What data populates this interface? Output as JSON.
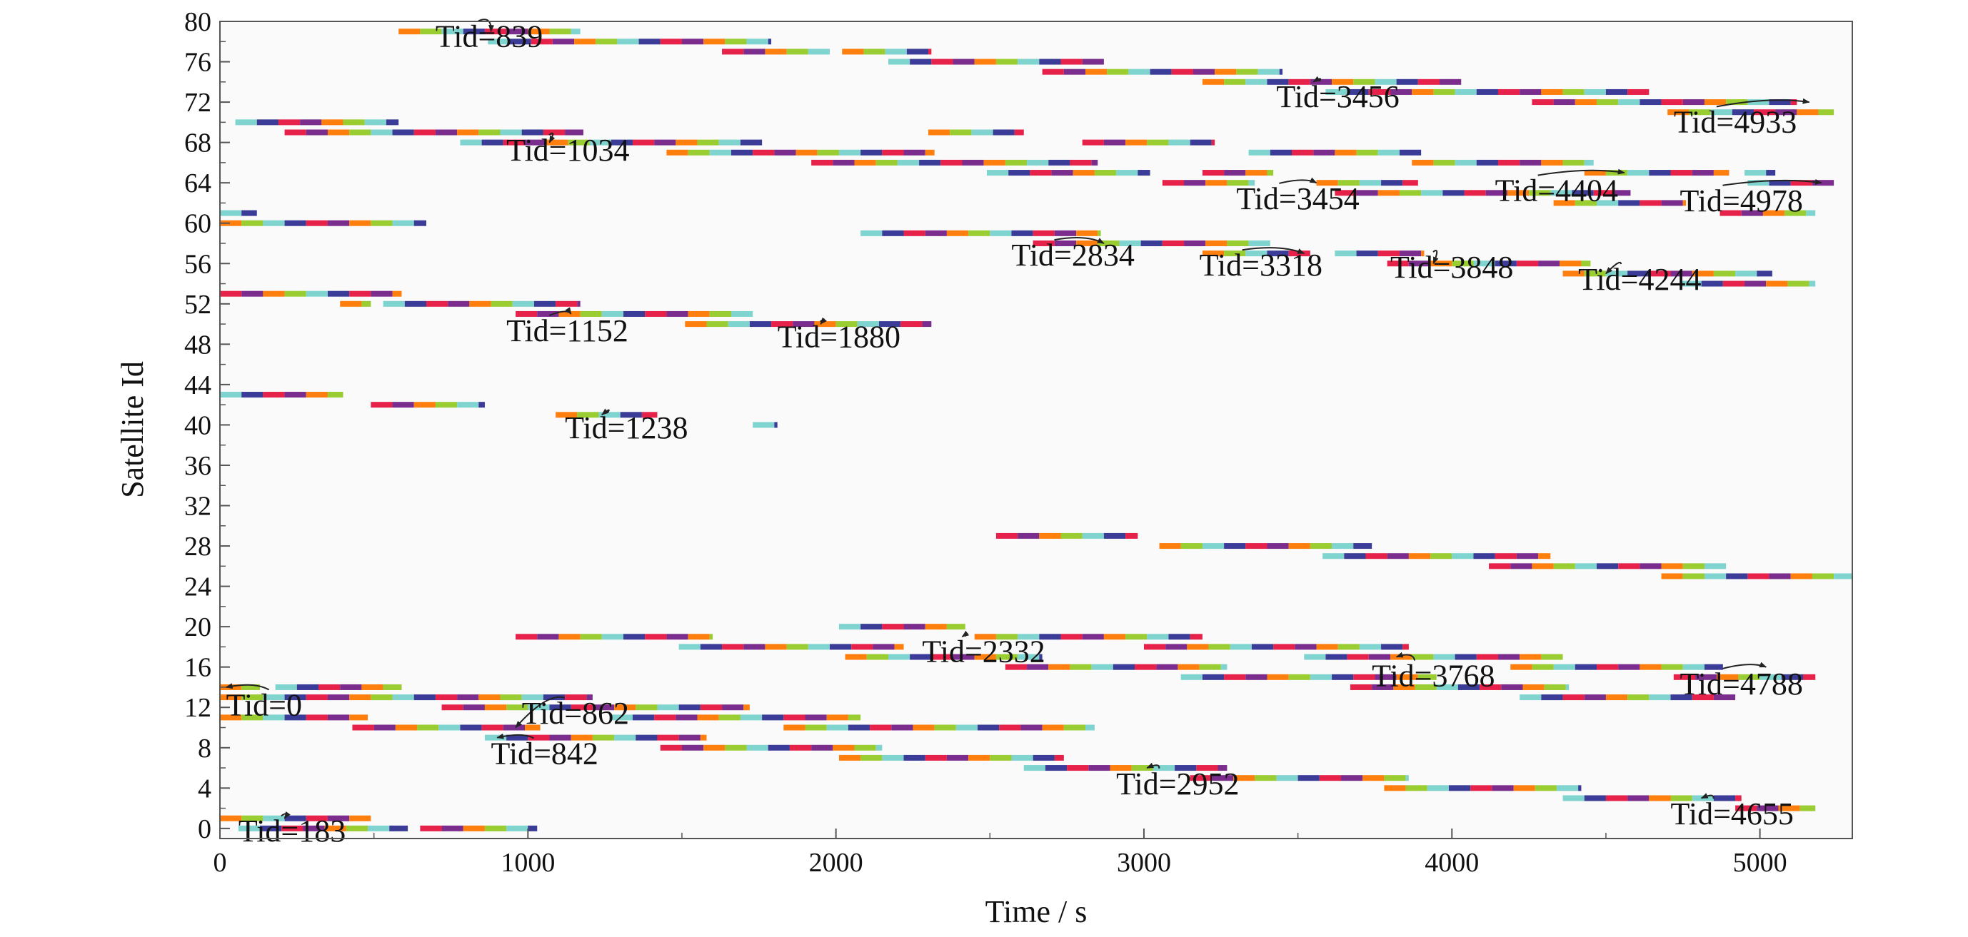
{
  "chart_data": {
    "type": "gantt-timeline",
    "xlabel": "Time / s",
    "ylabel": "Satellite Id",
    "xlim": [
      0,
      5300
    ],
    "ylim": [
      -1,
      80
    ],
    "x_ticks": [
      0,
      1000,
      2000,
      3000,
      4000,
      5000
    ],
    "x_tick_labels": [
      "0",
      "1000",
      "2000",
      "3000",
      "4000",
      "5000"
    ],
    "y_ticks": [
      0,
      4,
      8,
      12,
      16,
      20,
      24,
      28,
      32,
      36,
      40,
      44,
      48,
      52,
      56,
      60,
      64,
      68,
      72,
      76,
      80
    ],
    "y_tick_labels": [
      "0",
      "4",
      "8",
      "12",
      "16",
      "20",
      "24",
      "28",
      "32",
      "36",
      "40",
      "44",
      "48",
      "52",
      "56",
      "60",
      "64",
      "68",
      "72",
      "76",
      "80"
    ],
    "grid": false,
    "segment_colors": [
      "#FF7F0E",
      "#9ACD32",
      "#7FD4D0",
      "#3B3B98",
      "#E6224A",
      "#7B2D8E"
    ],
    "bars": [
      {
        "sat": 79,
        "start": 580,
        "end": 1170
      },
      {
        "sat": 78,
        "start": 870,
        "end": 1790
      },
      {
        "sat": 77,
        "start": 1630,
        "end": 1980
      },
      {
        "sat": 77,
        "start": 2020,
        "end": 2310
      },
      {
        "sat": 76,
        "start": 2170,
        "end": 2870
      },
      {
        "sat": 75,
        "start": 2670,
        "end": 3450
      },
      {
        "sat": 74,
        "start": 3190,
        "end": 4030
      },
      {
        "sat": 73,
        "start": 3590,
        "end": 4640
      },
      {
        "sat": 72,
        "start": 4260,
        "end": 5120
      },
      {
        "sat": 71,
        "start": 4700,
        "end": 5240
      },
      {
        "sat": 70,
        "start": 50,
        "end": 580
      },
      {
        "sat": 69,
        "start": 210,
        "end": 1180
      },
      {
        "sat": 69,
        "start": 2300,
        "end": 2610
      },
      {
        "sat": 68,
        "start": 780,
        "end": 1760
      },
      {
        "sat": 68,
        "start": 2800,
        "end": 3230
      },
      {
        "sat": 67,
        "start": 1450,
        "end": 2320
      },
      {
        "sat": 67,
        "start": 3340,
        "end": 3900
      },
      {
        "sat": 66,
        "start": 1920,
        "end": 2850
      },
      {
        "sat": 66,
        "start": 3870,
        "end": 4460
      },
      {
        "sat": 65,
        "start": 2490,
        "end": 3020
      },
      {
        "sat": 65,
        "start": 3190,
        "end": 3420
      },
      {
        "sat": 65,
        "start": 4430,
        "end": 4900
      },
      {
        "sat": 65,
        "start": 4950,
        "end": 5050
      },
      {
        "sat": 64,
        "start": 3060,
        "end": 3360
      },
      {
        "sat": 64,
        "start": 3560,
        "end": 3890
      },
      {
        "sat": 64,
        "start": 4960,
        "end": 5240
      },
      {
        "sat": 63,
        "start": 3620,
        "end": 4580
      },
      {
        "sat": 62,
        "start": 4330,
        "end": 4760
      },
      {
        "sat": 61,
        "start": 0,
        "end": 120
      },
      {
        "sat": 61,
        "start": 4870,
        "end": 5180
      },
      {
        "sat": 60,
        "start": 0,
        "end": 670
      },
      {
        "sat": 59,
        "start": 2080,
        "end": 2860
      },
      {
        "sat": 58,
        "start": 2640,
        "end": 3410
      },
      {
        "sat": 57,
        "start": 3190,
        "end": 3540
      },
      {
        "sat": 57,
        "start": 3620,
        "end": 3910
      },
      {
        "sat": 56,
        "start": 3790,
        "end": 4450
      },
      {
        "sat": 55,
        "start": 4360,
        "end": 5040
      },
      {
        "sat": 54,
        "start": 4740,
        "end": 5180
      },
      {
        "sat": 53,
        "start": 0,
        "end": 590
      },
      {
        "sat": 52,
        "start": 390,
        "end": 490
      },
      {
        "sat": 52,
        "start": 530,
        "end": 1170
      },
      {
        "sat": 51,
        "start": 960,
        "end": 1730
      },
      {
        "sat": 50,
        "start": 1510,
        "end": 2310
      },
      {
        "sat": 43,
        "start": 0,
        "end": 400
      },
      {
        "sat": 42,
        "start": 490,
        "end": 860
      },
      {
        "sat": 41,
        "start": 1090,
        "end": 1420
      },
      {
        "sat": 40,
        "start": 1730,
        "end": 1810
      },
      {
        "sat": 29,
        "start": 2520,
        "end": 2980
      },
      {
        "sat": 28,
        "start": 3050,
        "end": 3740
      },
      {
        "sat": 27,
        "start": 3580,
        "end": 4320
      },
      {
        "sat": 26,
        "start": 4120,
        "end": 4890
      },
      {
        "sat": 25,
        "start": 4680,
        "end": 5300
      },
      {
        "sat": 20,
        "start": 2010,
        "end": 2420
      },
      {
        "sat": 19,
        "start": 960,
        "end": 1600
      },
      {
        "sat": 19,
        "start": 2450,
        "end": 3190
      },
      {
        "sat": 18,
        "start": 1490,
        "end": 2220
      },
      {
        "sat": 18,
        "start": 3000,
        "end": 3860
      },
      {
        "sat": 17,
        "start": 2030,
        "end": 2670
      },
      {
        "sat": 17,
        "start": 3520,
        "end": 4360
      },
      {
        "sat": 16,
        "start": 2550,
        "end": 3270
      },
      {
        "sat": 16,
        "start": 4190,
        "end": 4880
      },
      {
        "sat": 15,
        "start": 3120,
        "end": 3950
      },
      {
        "sat": 15,
        "start": 4720,
        "end": 5180
      },
      {
        "sat": 14,
        "start": 0,
        "end": 130
      },
      {
        "sat": 14,
        "start": 180,
        "end": 590
      },
      {
        "sat": 14,
        "start": 3670,
        "end": 4380
      },
      {
        "sat": 13,
        "start": 0,
        "end": 1210
      },
      {
        "sat": 13,
        "start": 4220,
        "end": 4920
      },
      {
        "sat": 12,
        "start": 720,
        "end": 1720
      },
      {
        "sat": 11,
        "start": 0,
        "end": 480
      },
      {
        "sat": 11,
        "start": 1270,
        "end": 2080
      },
      {
        "sat": 10,
        "start": 430,
        "end": 1040
      },
      {
        "sat": 10,
        "start": 1830,
        "end": 2840
      },
      {
        "sat": 9,
        "start": 860,
        "end": 1580
      },
      {
        "sat": 8,
        "start": 1430,
        "end": 2150
      },
      {
        "sat": 7,
        "start": 2010,
        "end": 2740
      },
      {
        "sat": 6,
        "start": 2610,
        "end": 3270
      },
      {
        "sat": 5,
        "start": 3150,
        "end": 3860
      },
      {
        "sat": 4,
        "start": 3780,
        "end": 4420
      },
      {
        "sat": 3,
        "start": 4360,
        "end": 4940
      },
      {
        "sat": 2,
        "start": 4920,
        "end": 5180
      },
      {
        "sat": 1,
        "start": 0,
        "end": 490
      },
      {
        "sat": 0,
        "start": 60,
        "end": 610
      },
      {
        "sat": 0,
        "start": 650,
        "end": 1030
      }
    ],
    "annotations": [
      {
        "label": "Tid=839",
        "text_x": 700,
        "text_y": 77.5,
        "arrow_to_x": 880,
        "arrow_to_y": 79
      },
      {
        "label": "Tid=3456",
        "text_x": 3430,
        "text_y": 71.5,
        "arrow_to_x": 3550,
        "arrow_to_y": 74
      },
      {
        "label": "Tid=4933",
        "text_x": 4720,
        "text_y": 69.0,
        "arrow_to_x": 5160,
        "arrow_to_y": 72
      },
      {
        "label": "Tid=1034",
        "text_x": 930,
        "text_y": 66.2,
        "arrow_to_x": 1070,
        "arrow_to_y": 68
      },
      {
        "label": "Tid=3454",
        "text_x": 3300,
        "text_y": 61.4,
        "arrow_to_x": 3560,
        "arrow_to_y": 64
      },
      {
        "label": "Tid=4404",
        "text_x": 4140,
        "text_y": 62.2,
        "arrow_to_x": 4560,
        "arrow_to_y": 65
      },
      {
        "label": "Tid=4978",
        "text_x": 4740,
        "text_y": 61.2,
        "arrow_to_x": 5200,
        "arrow_to_y": 64
      },
      {
        "label": "Tid=2834",
        "text_x": 2570,
        "text_y": 55.8,
        "arrow_to_x": 2870,
        "arrow_to_y": 58
      },
      {
        "label": "Tid=3318",
        "text_x": 3180,
        "text_y": 54.8,
        "arrow_to_x": 3520,
        "arrow_to_y": 57
      },
      {
        "label": "Tid=3848",
        "text_x": 3800,
        "text_y": 54.6,
        "arrow_to_x": 3940,
        "arrow_to_y": 56
      },
      {
        "label": "Tid=4244",
        "text_x": 4410,
        "text_y": 53.4,
        "arrow_to_x": 4500,
        "arrow_to_y": 55
      },
      {
        "label": "Tid=1152",
        "text_x": 930,
        "text_y": 48.3,
        "arrow_to_x": 1140,
        "arrow_to_y": 51
      },
      {
        "label": "Tid=1880",
        "text_x": 1810,
        "text_y": 47.7,
        "arrow_to_x": 1950,
        "arrow_to_y": 50
      },
      {
        "label": "Tid=1238",
        "text_x": 1120,
        "text_y": 38.7,
        "arrow_to_x": 1240,
        "arrow_to_y": 41
      },
      {
        "label": "Tid=2332",
        "text_x": 2280,
        "text_y": 16.5,
        "arrow_to_x": 2410,
        "arrow_to_y": 19
      },
      {
        "label": "Tid=3768",
        "text_x": 3740,
        "text_y": 14.1,
        "arrow_to_x": 3820,
        "arrow_to_y": 17
      },
      {
        "label": "Tid=4788",
        "text_x": 4740,
        "text_y": 13.3,
        "arrow_to_x": 5020,
        "arrow_to_y": 16
      },
      {
        "label": "Tid=0",
        "text_x": 20,
        "text_y": 11.2,
        "arrow_to_x": 20,
        "arrow_to_y": 14
      },
      {
        "label": "Tid=862",
        "text_x": 980,
        "text_y": 10.4,
        "arrow_to_x": 960,
        "arrow_to_y": 10
      },
      {
        "label": "Tid=842",
        "text_x": 880,
        "text_y": 6.4,
        "arrow_to_x": 900,
        "arrow_to_y": 9
      },
      {
        "label": "Tid=2952",
        "text_x": 2910,
        "text_y": 3.4,
        "arrow_to_x": 3010,
        "arrow_to_y": 6
      },
      {
        "label": "Tid=4655",
        "text_x": 4710,
        "text_y": 0.4,
        "arrow_to_x": 4810,
        "arrow_to_y": 3
      },
      {
        "label": "Tid=183",
        "text_x": 60,
        "text_y": -1.3,
        "arrow_to_x": 210,
        "arrow_to_y": 1
      }
    ]
  }
}
